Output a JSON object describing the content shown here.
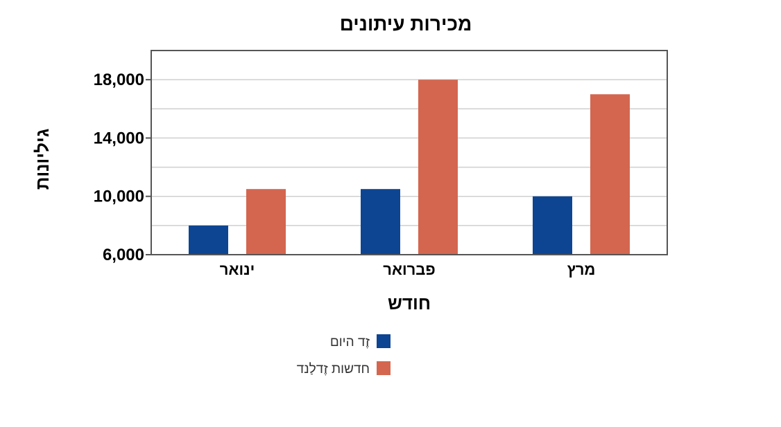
{
  "chart_data": {
    "type": "bar",
    "title": "מכירות עיתונים",
    "xlabel": "חודש",
    "ylabel": "גיליונות",
    "categories": [
      "ינואר",
      "פברואר",
      "מרץ"
    ],
    "series": [
      {
        "name": "זֶד היום",
        "color": "#0d4592",
        "values": [
          8000,
          10500,
          10000
        ]
      },
      {
        "name": "חדשות זֶדלַנד",
        "color": "#d4664f",
        "values": [
          10500,
          18000,
          17000
        ]
      }
    ],
    "ylim": [
      6000,
      20000
    ],
    "yticks": [
      6000,
      10000,
      14000,
      18000
    ],
    "ytick_labels": [
      "6,000",
      "10,000",
      "14,000",
      "18,000"
    ],
    "grid": true,
    "legend_position": "bottom"
  }
}
